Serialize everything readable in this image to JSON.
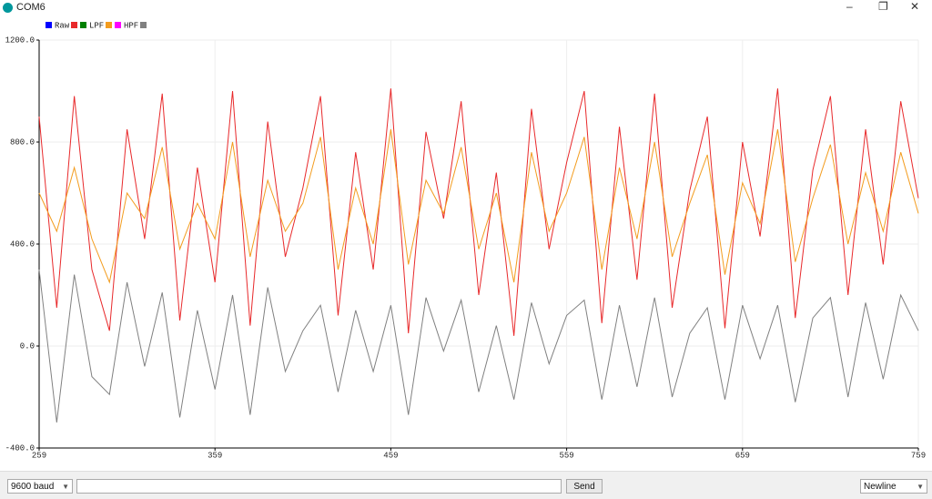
{
  "window": {
    "title": "COM6"
  },
  "chart_data": {
    "type": "line",
    "x": [
      259,
      269,
      279,
      289,
      299,
      309,
      319,
      329,
      339,
      349,
      359,
      369,
      379,
      389,
      399,
      409,
      419,
      429,
      439,
      449,
      459,
      469,
      479,
      489,
      499,
      509,
      519,
      529,
      539,
      549,
      559,
      569,
      579,
      589,
      599,
      609,
      619,
      629,
      639,
      649,
      659,
      669,
      679,
      689,
      699,
      709,
      719,
      729,
      739,
      749,
      759
    ],
    "xlim": [
      259,
      759
    ],
    "xticks": [
      259,
      359,
      459,
      559,
      659,
      759
    ],
    "ylim": [
      -400,
      1200
    ],
    "yticks": [
      {
        "value": -400,
        "label": "-400.0"
      },
      {
        "value": 0,
        "label": "0.0"
      },
      {
        "value": 400,
        "label": "400.0"
      },
      {
        "value": 800,
        "label": "800.0"
      },
      {
        "value": 1200,
        "label": "1200.0"
      }
    ],
    "grid": true,
    "series": [
      {
        "name": "Raw",
        "color": "#e8292b",
        "values": [
          900,
          150,
          980,
          300,
          60,
          850,
          420,
          990,
          100,
          700,
          250,
          1000,
          80,
          880,
          350,
          620,
          980,
          120,
          760,
          300,
          1010,
          50,
          840,
          500,
          960,
          200,
          680,
          40,
          930,
          380,
          720,
          1000,
          90,
          860,
          260,
          990,
          150,
          610,
          900,
          70,
          800,
          430,
          1010,
          110,
          690,
          980,
          200,
          850,
          320,
          960,
          580
        ]
      },
      {
        "name": "LPF",
        "color": "#f39c1e",
        "values": [
          600,
          450,
          700,
          420,
          250,
          600,
          500,
          780,
          380,
          560,
          420,
          800,
          350,
          650,
          450,
          560,
          820,
          300,
          620,
          400,
          850,
          320,
          650,
          520,
          780,
          380,
          600,
          250,
          760,
          450,
          600,
          820,
          300,
          700,
          420,
          800,
          350,
          560,
          750,
          280,
          640,
          480,
          850,
          330,
          580,
          790,
          400,
          680,
          450,
          760,
          520
        ]
      },
      {
        "name": "HPF",
        "color": "#808080",
        "values": [
          300,
          -300,
          280,
          -120,
          -190,
          250,
          -80,
          210,
          -280,
          140,
          -170,
          200,
          -270,
          230,
          -100,
          60,
          160,
          -180,
          140,
          -100,
          160,
          -270,
          190,
          -20,
          180,
          -180,
          80,
          -210,
          170,
          -70,
          120,
          180,
          -210,
          160,
          -160,
          190,
          -200,
          50,
          150,
          -210,
          160,
          -50,
          160,
          -220,
          110,
          190,
          -200,
          170,
          -130,
          200,
          60
        ]
      }
    ]
  },
  "controls": {
    "baud": "9600 baud",
    "send": "Send",
    "line_ending": "Newline"
  }
}
